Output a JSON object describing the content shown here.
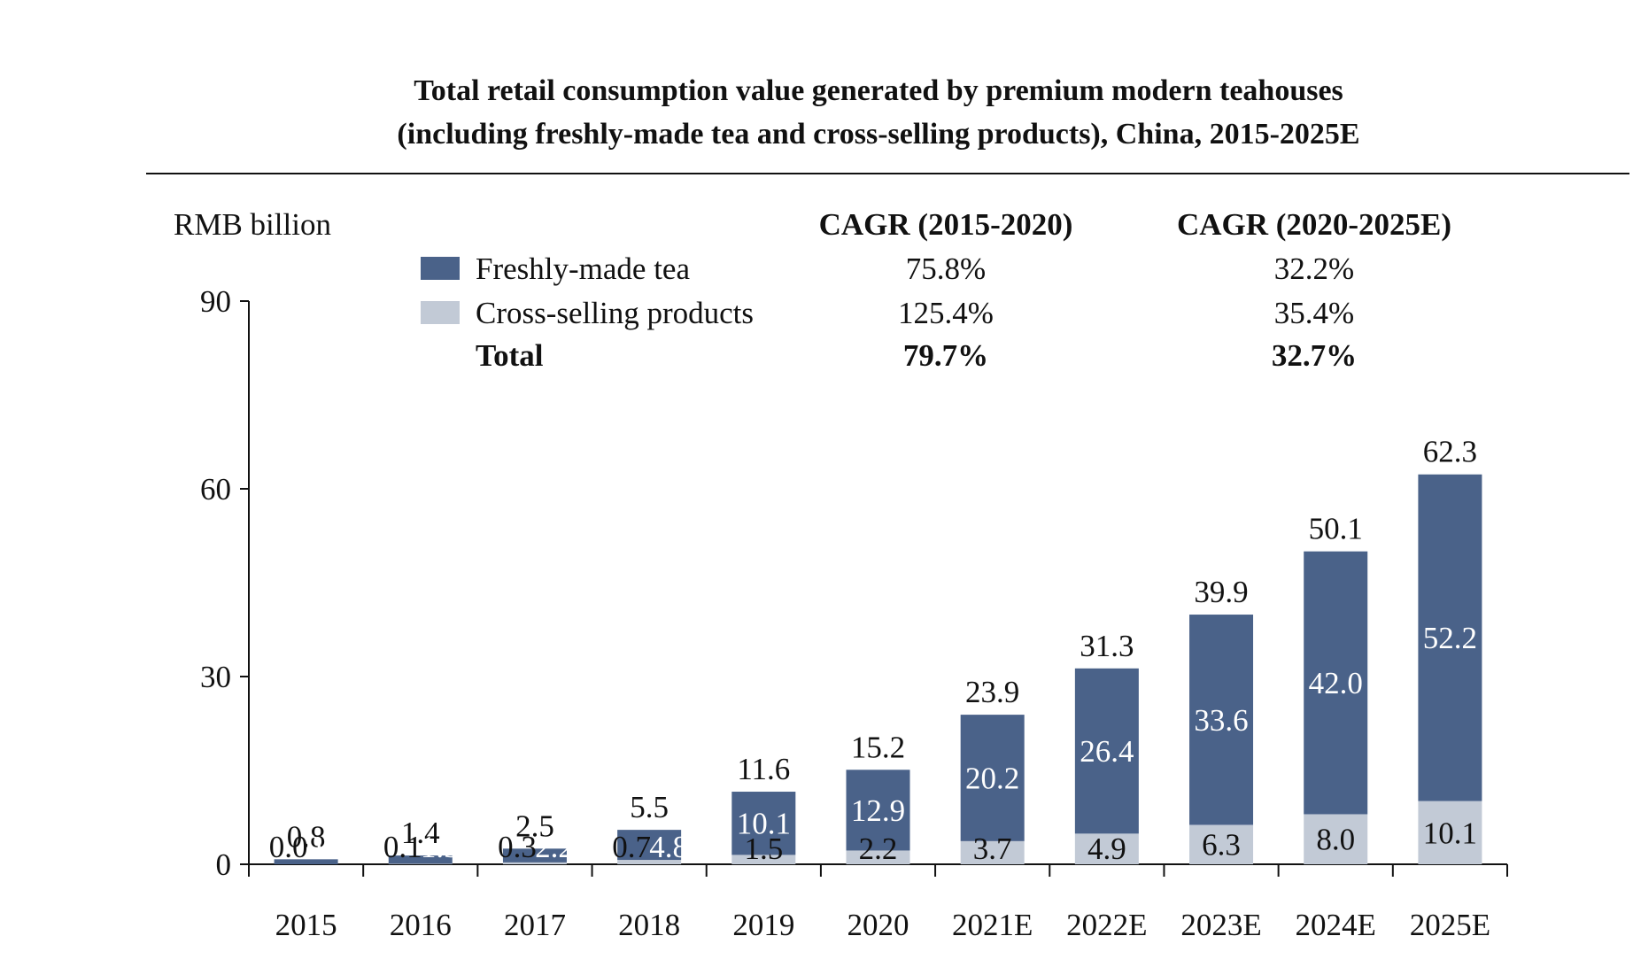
{
  "title_line1": "Total retail consumption value generated by premium modern teahouses",
  "title_line2": "(including freshly-made tea and cross-selling products), China, 2015-2025E",
  "unit_label": "RMB billion",
  "legend": {
    "items": [
      {
        "name": "Freshly-made tea",
        "color": "#4a6289"
      },
      {
        "name": "Cross-selling products",
        "color": "#c2cad6"
      },
      {
        "name": "Total",
        "color": ""
      }
    ]
  },
  "cagr": {
    "headers": [
      "CAGR (2015-2020)",
      "CAGR (2020-2025E)"
    ],
    "rows": [
      {
        "series": "Freshly-made tea",
        "values": [
          "75.8%",
          "32.2%"
        ]
      },
      {
        "series": "Cross-selling products",
        "values": [
          "125.4%",
          "35.4%"
        ]
      },
      {
        "series": "Total",
        "values": [
          "79.7%",
          "32.7%"
        ]
      }
    ]
  },
  "chart_data": {
    "type": "bar",
    "stacked": true,
    "categories": [
      "2015",
      "2016",
      "2017",
      "2018",
      "2019",
      "2020",
      "2021E",
      "2022E",
      "2023E",
      "2024E",
      "2025E"
    ],
    "series": [
      {
        "name": "Cross-selling products",
        "values": [
          0.0,
          0.1,
          0.3,
          0.7,
          1.5,
          2.2,
          3.7,
          4.9,
          6.3,
          8.0,
          10.1
        ],
        "color": "#c2cad6"
      },
      {
        "name": "Freshly-made tea",
        "values": [
          0.8,
          1.3,
          2.2,
          4.8,
          10.1,
          12.9,
          20.2,
          26.4,
          33.6,
          42.0,
          52.2
        ],
        "color": "#4a6289"
      }
    ],
    "totals": [
      0.8,
      1.4,
      2.5,
      5.5,
      11.6,
      15.2,
      23.9,
      31.3,
      39.9,
      50.1,
      62.3
    ],
    "yticks": [
      0,
      30,
      60,
      90
    ],
    "ylim": [
      0,
      90
    ],
    "ylabel": "RMB billion",
    "xlabel": "",
    "legend_position": "top-left"
  }
}
